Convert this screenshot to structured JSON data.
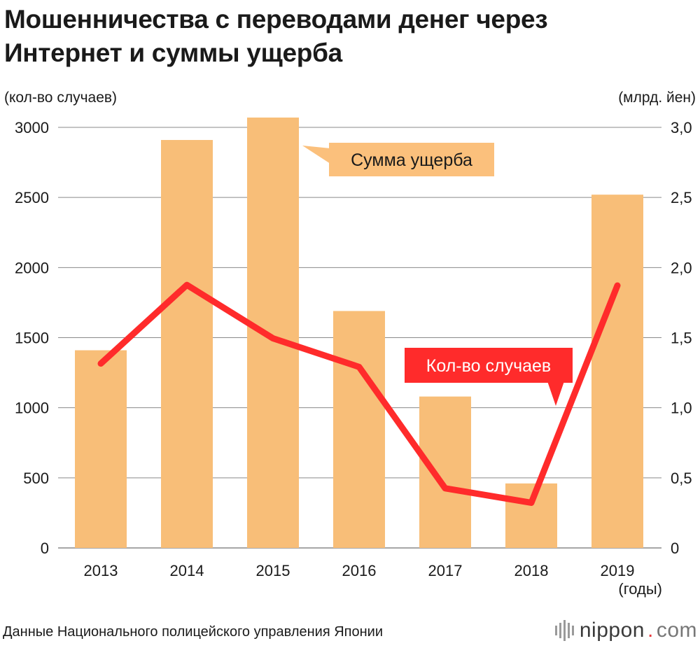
{
  "header": {
    "title_line1": "Мошенничества с переводами денег через",
    "title_line2": "Интернет и суммы ущерба"
  },
  "axes": {
    "left_unit": "(кол-во случаев)",
    "right_unit": "(млрд. йен)",
    "x_unit": "(годы)",
    "left_ticks": [
      "0",
      "500",
      "1000",
      "1500",
      "2000",
      "2500",
      "3000"
    ],
    "right_ticks": [
      "0",
      "0,5",
      "1,0",
      "1,5",
      "2,0",
      "2,5",
      "3,0"
    ]
  },
  "colors": {
    "bar": "#f8be78",
    "line": "#ff2b2b",
    "grid": "#8a8a8a",
    "label_box": "#fbc07c",
    "label_box_red": "#ff2b2b"
  },
  "chart_data": {
    "type": "bar",
    "categories": [
      "2013",
      "2014",
      "2015",
      "2016",
      "2017",
      "2018",
      "2019"
    ],
    "series": [
      {
        "name": "Сумма ущерба",
        "type": "bar",
        "axis": "right",
        "values": [
          1.41,
          2.91,
          3.07,
          1.69,
          1.08,
          0.46,
          2.52
        ]
      },
      {
        "name": "Кол-во случаев",
        "type": "line",
        "axis": "left",
        "values": [
          1315,
          1876,
          1495,
          1291,
          425,
          322,
          1872
        ]
      }
    ],
    "ylim_left": [
      0,
      3000
    ],
    "ylim_right": [
      0,
      3.0
    ],
    "grid": true
  },
  "footer": {
    "source": "Данные Национального полицейского управления Японии",
    "logo_main": "nippon",
    "logo_dot": ".",
    "logo_tld": "com"
  }
}
